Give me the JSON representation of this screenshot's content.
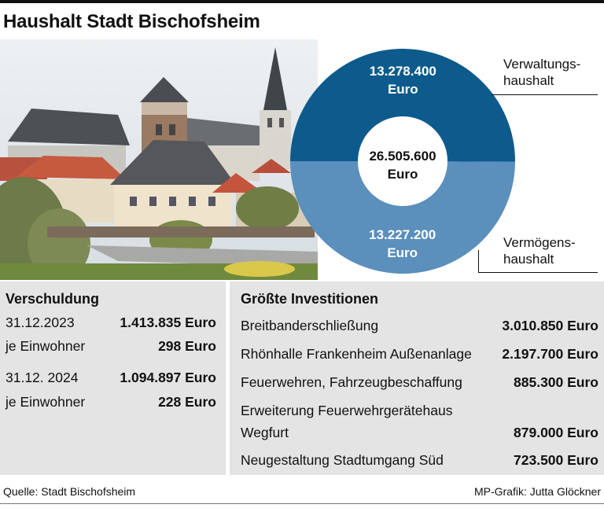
{
  "title": "Haushalt Stadt Bischofsheim",
  "colors": {
    "dark_blue": "#0d5b8c",
    "light_blue": "#5b8fbc",
    "panel_gray": "#e4e4e4"
  },
  "chart_data": {
    "type": "pie",
    "title": "",
    "total_label": "26.505.600",
    "total_unit": "Euro",
    "slices": [
      {
        "label_line1": "Verwaltungs-",
        "label_line2": "haushalt",
        "value": 13278400,
        "value_text": "13.278.400",
        "unit": "Euro",
        "color": "#0d5b8c"
      },
      {
        "label_line1": "Vermögens-",
        "label_line2": "haushalt",
        "value": 13227200,
        "value_text": "13.227.200",
        "unit": "Euro",
        "color": "#5b8fbc"
      }
    ]
  },
  "debt": {
    "heading": "Verschuldung",
    "rows": [
      {
        "label": "31.12.2023",
        "value": "1.413.835 Euro"
      },
      {
        "label": "je Einwohner",
        "value": "298 Euro"
      },
      {
        "label": "31.12. 2024",
        "value": "1.094.897 Euro"
      },
      {
        "label": "je Einwohner",
        "value": "228 Euro"
      }
    ]
  },
  "investments": {
    "heading": "Größte Investitionen",
    "rows": [
      {
        "label": "Breitbanderschließung",
        "label2": "",
        "value": "3.010.850 Euro"
      },
      {
        "label": "Rhönhalle Frankenheim Außenanlage",
        "label2": "",
        "value": "2.197.700 Euro"
      },
      {
        "label": "Feuerwehren, Fahrzeugbeschaffung",
        "label2": "",
        "value": "885.300 Euro"
      },
      {
        "label": "Erweiterung Feuerwehrgerätehaus",
        "label2": "Wegfurt",
        "value": "879.000 Euro"
      },
      {
        "label": "Neugestaltung Stadtumgang Süd",
        "label2": "",
        "value": "723.500 Euro"
      }
    ]
  },
  "footer": {
    "source": "Quelle: Stadt Bischofsheim",
    "credit": "MP-Grafik: Jutta Glöckner"
  }
}
